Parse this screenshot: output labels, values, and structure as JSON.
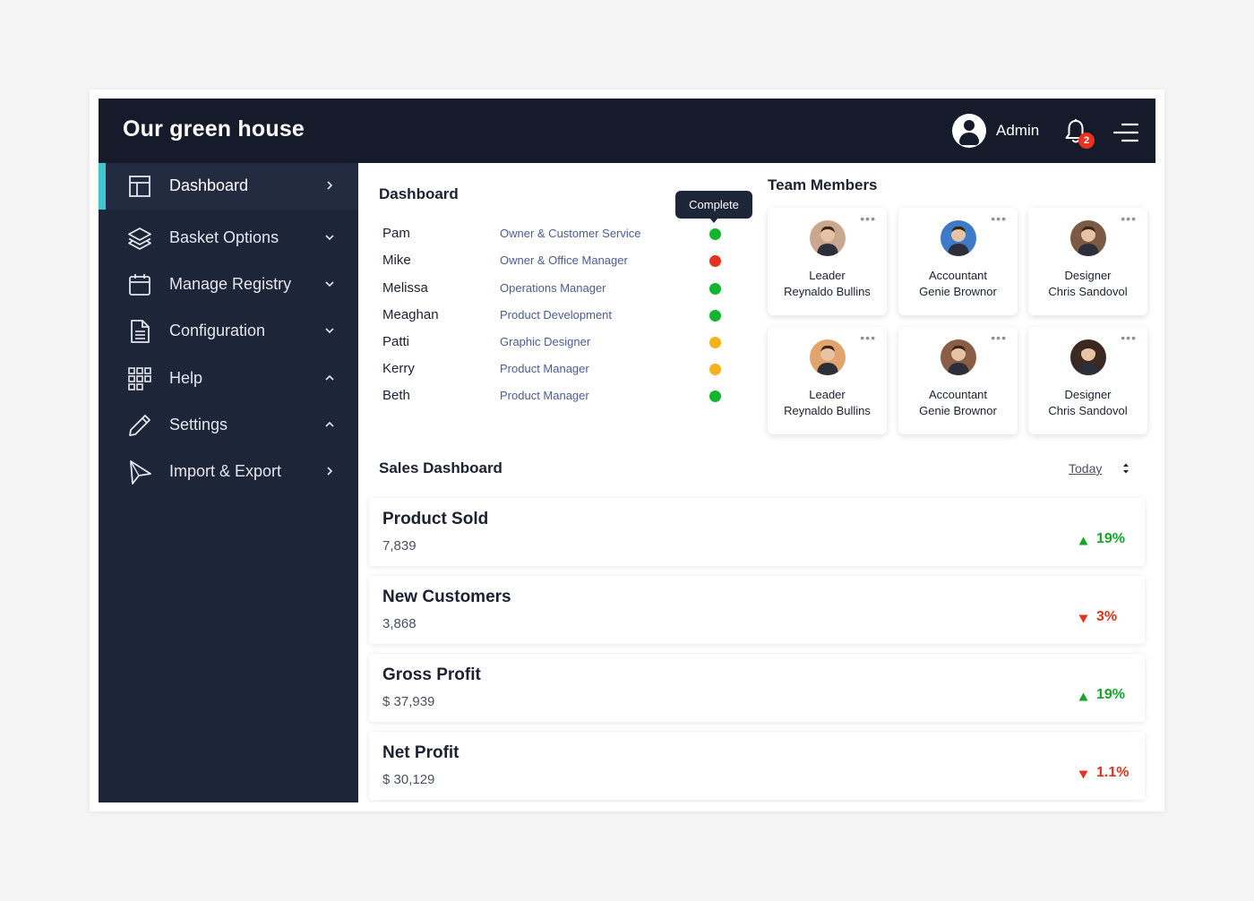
{
  "app": {
    "title": "Our green house"
  },
  "header": {
    "user_label": "Admin",
    "notifications_count": "2"
  },
  "sidebar": {
    "items": [
      {
        "label": "Dashboard",
        "icon": "layout-icon",
        "chevron": "right"
      },
      {
        "label": "Basket Options",
        "icon": "layers-icon",
        "chevron": "down"
      },
      {
        "label": "Manage Registry",
        "icon": "calendar-icon",
        "chevron": "down"
      },
      {
        "label": "Configuration",
        "icon": "document-icon",
        "chevron": "down"
      },
      {
        "label": "Help",
        "icon": "grid-icon",
        "chevron": "up"
      },
      {
        "label": "Settings",
        "icon": "pencil-icon",
        "chevron": "up"
      },
      {
        "label": "Import & Export",
        "icon": "send-icon",
        "chevron": "right"
      }
    ]
  },
  "dashboard": {
    "title": "Dashboard",
    "tooltip": "Complete",
    "team": [
      {
        "name": "Pam",
        "role": "Owner & Customer Service",
        "status_color": "#12b52b"
      },
      {
        "name": "Mike",
        "role": "Owner & Office Manager",
        "status_color": "#e3321e"
      },
      {
        "name": "Melissa",
        "role": "Operations Manager",
        "status_color": "#12b52b"
      },
      {
        "name": "Meaghan",
        "role": "Product Development",
        "status_color": "#12b52b"
      },
      {
        "name": "Patti",
        "role": "Graphic Designer",
        "status_color": "#f5b21c"
      },
      {
        "name": "Kerry",
        "role": "Product Manager",
        "status_color": "#f5b21c"
      },
      {
        "name": "Beth",
        "role": "Product Manager",
        "status_color": "#12b52b"
      }
    ]
  },
  "team_members": {
    "title": "Team Members",
    "cards": [
      {
        "role": "Leader",
        "name": "Reynaldo Bullins",
        "photo_bg": "#c8a98f"
      },
      {
        "role": "Accountant",
        "name": "Genie Brownor",
        "photo_bg": "#3d7bc9"
      },
      {
        "role": "Designer",
        "name": "Chris Sandovol",
        "photo_bg": "#7a5a44"
      },
      {
        "role": "Leader",
        "name": "Reynaldo Bullins",
        "photo_bg": "#e0a46c"
      },
      {
        "role": "Accountant",
        "name": "Genie Brownor",
        "photo_bg": "#8a5d45"
      },
      {
        "role": "Designer",
        "name": "Chris Sandovol",
        "photo_bg": "#3a2a22"
      }
    ]
  },
  "sales": {
    "title": "Sales Dashboard",
    "period": "Today",
    "cards": [
      {
        "title": "Product Sold",
        "value": "7,839",
        "change": "19%",
        "direction": "up"
      },
      {
        "title": "New Customers",
        "value": "3,868",
        "change": "3%",
        "direction": "down"
      },
      {
        "title": "Gross Profit",
        "value": "$ 37,939",
        "change": "19%",
        "direction": "up"
      },
      {
        "title": "Net Profit",
        "value": "$ 30,129",
        "change": "1.1%",
        "direction": "down"
      }
    ]
  },
  "colors": {
    "up": "#12a62b",
    "down": "#e3321e",
    "accent": "#3ec5cf",
    "sidebar": "#1d2539",
    "topbar": "#151b2b"
  }
}
